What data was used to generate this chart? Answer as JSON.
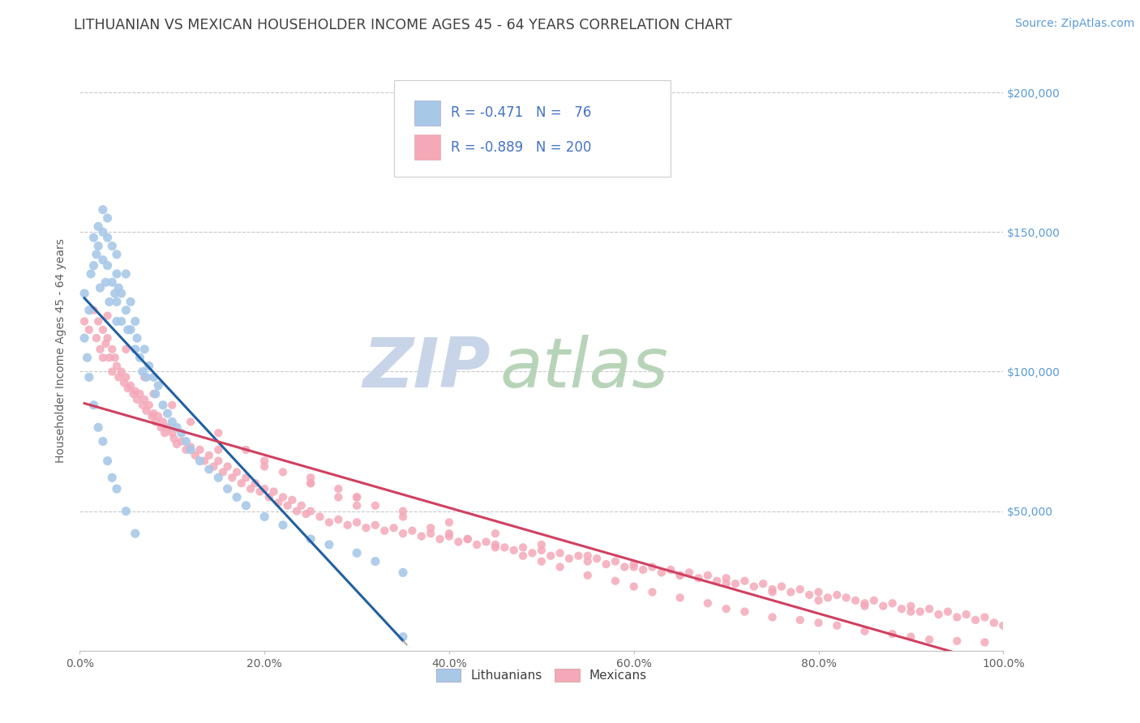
{
  "title": "LITHUANIAN VS MEXICAN HOUSEHOLDER INCOME AGES 45 - 64 YEARS CORRELATION CHART",
  "source": "Source: ZipAtlas.com",
  "ylabel": "Householder Income Ages 45 - 64 years",
  "xlim": [
    0.0,
    1.0
  ],
  "ylim": [
    0,
    215000
  ],
  "yticks": [
    0,
    50000,
    100000,
    150000,
    200000
  ],
  "ytick_labels": [
    "",
    "$50,000",
    "$100,000",
    "$150,000",
    "$200,000"
  ],
  "xticks": [
    0.0,
    0.2,
    0.4,
    0.6,
    0.8,
    1.0
  ],
  "xtick_labels": [
    "0.0%",
    "20.0%",
    "40.0%",
    "60.0%",
    "80.0%",
    "100.0%"
  ],
  "blue_color": "#a8c8e8",
  "pink_color": "#f4a8b8",
  "blue_line_color": "#2060a0",
  "pink_line_color": "#d04060",
  "title_color": "#404040",
  "source_color": "#5b9bd5",
  "legend_text_color": "#4472c4",
  "background_color": "#ffffff",
  "grid_color": "#c8c8c8",
  "watermark_zip_color": "#c8d4e8",
  "watermark_atlas_color": "#b8d4b8",
  "lit_scatter_x": [
    0.005,
    0.01,
    0.012,
    0.015,
    0.015,
    0.018,
    0.02,
    0.02,
    0.022,
    0.025,
    0.025,
    0.025,
    0.028,
    0.03,
    0.03,
    0.03,
    0.032,
    0.035,
    0.035,
    0.038,
    0.04,
    0.04,
    0.04,
    0.04,
    0.042,
    0.045,
    0.045,
    0.05,
    0.05,
    0.052,
    0.055,
    0.055,
    0.06,
    0.06,
    0.062,
    0.065,
    0.068,
    0.07,
    0.072,
    0.075,
    0.08,
    0.082,
    0.085,
    0.09,
    0.095,
    0.1,
    0.105,
    0.11,
    0.115,
    0.12,
    0.13,
    0.14,
    0.15,
    0.16,
    0.17,
    0.18,
    0.2,
    0.22,
    0.25,
    0.27,
    0.3,
    0.32,
    0.35,
    0.005,
    0.008,
    0.01,
    0.015,
    0.02,
    0.025,
    0.03,
    0.035,
    0.04,
    0.05,
    0.06,
    0.35
  ],
  "lit_scatter_y": [
    128000,
    122000,
    135000,
    148000,
    138000,
    142000,
    152000,
    145000,
    130000,
    158000,
    150000,
    140000,
    132000,
    155000,
    148000,
    138000,
    125000,
    145000,
    132000,
    128000,
    142000,
    135000,
    125000,
    118000,
    130000,
    128000,
    118000,
    135000,
    122000,
    115000,
    125000,
    115000,
    118000,
    108000,
    112000,
    105000,
    100000,
    108000,
    98000,
    102000,
    98000,
    92000,
    95000,
    88000,
    85000,
    82000,
    80000,
    78000,
    75000,
    72000,
    68000,
    65000,
    62000,
    58000,
    55000,
    52000,
    48000,
    45000,
    40000,
    38000,
    35000,
    32000,
    28000,
    112000,
    105000,
    98000,
    88000,
    80000,
    75000,
    68000,
    62000,
    58000,
    50000,
    42000,
    5000
  ],
  "mex_scatter_x": [
    0.005,
    0.01,
    0.015,
    0.018,
    0.02,
    0.022,
    0.025,
    0.025,
    0.028,
    0.03,
    0.032,
    0.035,
    0.035,
    0.038,
    0.04,
    0.042,
    0.045,
    0.048,
    0.05,
    0.052,
    0.055,
    0.058,
    0.06,
    0.062,
    0.065,
    0.068,
    0.07,
    0.072,
    0.075,
    0.078,
    0.08,
    0.082,
    0.085,
    0.088,
    0.09,
    0.092,
    0.095,
    0.1,
    0.102,
    0.105,
    0.11,
    0.115,
    0.12,
    0.125,
    0.13,
    0.135,
    0.14,
    0.145,
    0.15,
    0.155,
    0.16,
    0.165,
    0.17,
    0.175,
    0.18,
    0.185,
    0.19,
    0.195,
    0.2,
    0.205,
    0.21,
    0.215,
    0.22,
    0.225,
    0.23,
    0.235,
    0.24,
    0.245,
    0.25,
    0.26,
    0.27,
    0.28,
    0.29,
    0.3,
    0.31,
    0.32,
    0.33,
    0.34,
    0.35,
    0.36,
    0.37,
    0.38,
    0.39,
    0.4,
    0.41,
    0.42,
    0.43,
    0.44,
    0.45,
    0.46,
    0.47,
    0.48,
    0.49,
    0.5,
    0.51,
    0.52,
    0.53,
    0.54,
    0.55,
    0.56,
    0.57,
    0.58,
    0.59,
    0.6,
    0.61,
    0.62,
    0.63,
    0.64,
    0.65,
    0.66,
    0.67,
    0.68,
    0.69,
    0.7,
    0.71,
    0.72,
    0.73,
    0.74,
    0.75,
    0.76,
    0.77,
    0.78,
    0.79,
    0.8,
    0.81,
    0.82,
    0.83,
    0.84,
    0.85,
    0.86,
    0.87,
    0.88,
    0.89,
    0.9,
    0.91,
    0.92,
    0.93,
    0.94,
    0.95,
    0.96,
    0.97,
    0.98,
    0.99,
    1.0,
    0.03,
    0.05,
    0.07,
    0.08,
    0.1,
    0.12,
    0.15,
    0.18,
    0.2,
    0.22,
    0.25,
    0.28,
    0.3,
    0.25,
    0.28,
    0.3,
    0.32,
    0.35,
    0.38,
    0.4,
    0.42,
    0.45,
    0.48,
    0.5,
    0.52,
    0.55,
    0.58,
    0.6,
    0.62,
    0.65,
    0.68,
    0.7,
    0.72,
    0.75,
    0.78,
    0.8,
    0.82,
    0.85,
    0.88,
    0.9,
    0.92,
    0.95,
    0.98,
    0.15,
    0.2,
    0.25,
    0.3,
    0.35,
    0.4,
    0.45,
    0.5,
    0.55,
    0.6,
    0.65,
    0.7,
    0.75,
    0.8,
    0.85,
    0.9
  ],
  "mex_scatter_y": [
    118000,
    115000,
    122000,
    112000,
    118000,
    108000,
    115000,
    105000,
    110000,
    112000,
    105000,
    108000,
    100000,
    105000,
    102000,
    98000,
    100000,
    96000,
    98000,
    94000,
    95000,
    92000,
    93000,
    90000,
    92000,
    88000,
    90000,
    86000,
    88000,
    84000,
    85000,
    82000,
    84000,
    80000,
    82000,
    78000,
    80000,
    78000,
    76000,
    74000,
    75000,
    72000,
    73000,
    70000,
    72000,
    68000,
    70000,
    66000,
    68000,
    64000,
    66000,
    62000,
    64000,
    60000,
    62000,
    58000,
    60000,
    57000,
    58000,
    55000,
    57000,
    53000,
    55000,
    52000,
    54000,
    50000,
    52000,
    49000,
    50000,
    48000,
    46000,
    47000,
    45000,
    46000,
    44000,
    45000,
    43000,
    44000,
    42000,
    43000,
    41000,
    42000,
    40000,
    41000,
    39000,
    40000,
    38000,
    39000,
    38000,
    37000,
    36000,
    37000,
    35000,
    36000,
    34000,
    35000,
    33000,
    34000,
    32000,
    33000,
    31000,
    32000,
    30000,
    31000,
    29000,
    30000,
    28000,
    29000,
    27000,
    28000,
    26000,
    27000,
    25000,
    26000,
    24000,
    25000,
    23000,
    24000,
    22000,
    23000,
    21000,
    22000,
    20000,
    21000,
    19000,
    20000,
    19000,
    18000,
    17000,
    18000,
    16000,
    17000,
    15000,
    16000,
    14000,
    15000,
    13000,
    14000,
    12000,
    13000,
    11000,
    12000,
    10000,
    9000,
    120000,
    108000,
    98000,
    92000,
    88000,
    82000,
    78000,
    72000,
    68000,
    64000,
    60000,
    55000,
    52000,
    62000,
    58000,
    55000,
    52000,
    48000,
    44000,
    42000,
    40000,
    37000,
    34000,
    32000,
    30000,
    27000,
    25000,
    23000,
    21000,
    19000,
    17000,
    15000,
    14000,
    12000,
    11000,
    10000,
    9000,
    7000,
    6000,
    5000,
    4000,
    3500,
    3000,
    72000,
    66000,
    60000,
    55000,
    50000,
    46000,
    42000,
    38000,
    34000,
    30000,
    27000,
    24000,
    21000,
    18000,
    16000,
    14000
  ]
}
